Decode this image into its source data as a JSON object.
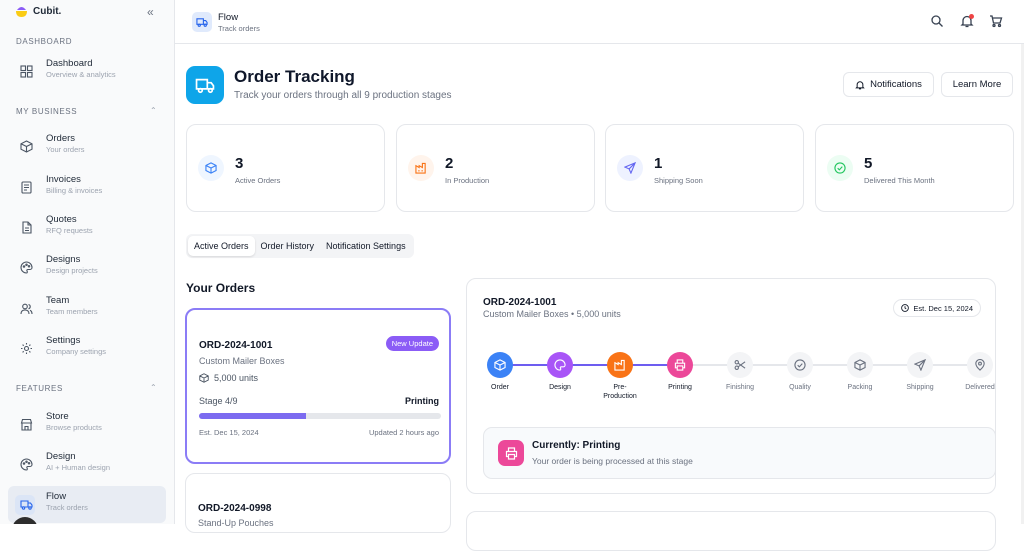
{
  "brand": {
    "name": "Cubit."
  },
  "sidebar": {
    "collapse_glyph": "«",
    "sections": {
      "dashboard": "DASHBOARD",
      "business": "MY BUSINESS",
      "features": "FEATURES"
    },
    "items": [
      {
        "label": "Dashboard",
        "sub": "Overview & analytics",
        "icon": "grid-icon"
      },
      {
        "label": "Orders",
        "sub": "Your orders",
        "icon": "box-icon"
      },
      {
        "label": "Invoices",
        "sub": "Billing & invoices",
        "icon": "receipt-icon"
      },
      {
        "label": "Quotes",
        "sub": "RFQ requests",
        "icon": "document-icon"
      },
      {
        "label": "Designs",
        "sub": "Design projects",
        "icon": "palette-icon"
      },
      {
        "label": "Team",
        "sub": "Team members",
        "icon": "users-icon"
      },
      {
        "label": "Settings",
        "sub": "Company settings",
        "icon": "gear-icon"
      },
      {
        "label": "Store",
        "sub": "Browse products",
        "icon": "store-icon"
      },
      {
        "label": "Design",
        "sub": "AI + Human design",
        "icon": "palette-icon"
      },
      {
        "label": "Flow",
        "sub": "Track orders",
        "icon": "truck-icon",
        "active": true
      }
    ]
  },
  "header": {
    "title": "Flow",
    "subtitle": "Track orders"
  },
  "page": {
    "title": "Order Tracking",
    "subtitle": "Track your orders through all 9 production stages",
    "notifications_label": "Notifications",
    "learn_more_label": "Learn More"
  },
  "stats": [
    {
      "value": "3",
      "label": "Active Orders",
      "color": "#3b82f6",
      "icon": "box-icon"
    },
    {
      "value": "2",
      "label": "In Production",
      "color": "#f97316",
      "icon": "factory-icon"
    },
    {
      "value": "1",
      "label": "Shipping Soon",
      "color": "#6366f1",
      "icon": "send-icon"
    },
    {
      "value": "5",
      "label": "Delivered This Month",
      "color": "#22c55e",
      "icon": "check-circle-icon"
    }
  ],
  "tabs": [
    "Active Orders",
    "Order History",
    "Notification Settings"
  ],
  "orders_heading": "Your Orders",
  "orders": [
    {
      "id": "ORD-2024-1001",
      "product": "Custom Mailer Boxes",
      "badge": "New Update",
      "units": "5,000 units",
      "stage": "Stage 4/9",
      "progress": 0.444,
      "status": "Printing",
      "est": "Est. Dec 15, 2024",
      "updated": "Updated 2 hours ago"
    },
    {
      "id": "ORD-2024-0998",
      "product": "Stand-Up Pouches"
    }
  ],
  "detail": {
    "id": "ORD-2024-1001",
    "product": "Custom Mailer Boxes • 5,000 units",
    "est": "Est. Dec 15, 2024",
    "steps": [
      {
        "label": "Order",
        "color": "#3b82f6",
        "done": true
      },
      {
        "label": "Design",
        "color": "#a855f7",
        "done": true
      },
      {
        "label": "Pre-Production",
        "color": "#f97316",
        "done": true
      },
      {
        "label": "Printing",
        "color": "#ec4899",
        "done": true
      },
      {
        "label": "Finishing",
        "done": false
      },
      {
        "label": "Quality",
        "done": false
      },
      {
        "label": "Packing",
        "done": false
      },
      {
        "label": "Shipping",
        "done": false
      },
      {
        "label": "Delivered",
        "done": false
      }
    ],
    "current_title": "Currently: Printing",
    "current_sub": "Your order is being processed at this stage"
  }
}
